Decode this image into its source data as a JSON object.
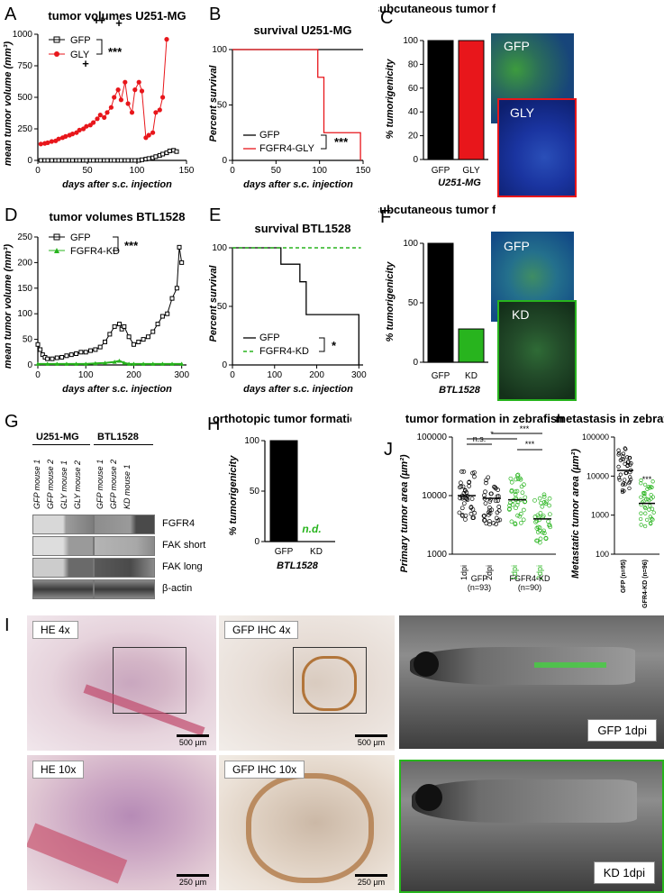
{
  "panel_labels": {
    "A": "A",
    "B": "B",
    "C": "C",
    "D": "D",
    "E": "E",
    "F": "F",
    "G": "G",
    "H": "H",
    "I": "I",
    "J": "J"
  },
  "colors": {
    "gfp": "#000000",
    "gly": "#e8161b",
    "kd": "#28b41e",
    "dapi": "#1a35b8",
    "gfp_fluor": "#3fa83c"
  },
  "chart_data": [
    {
      "id": "A",
      "type": "line",
      "title": "tumor volumes U251-MG",
      "xlabel": "days after s.c. injection",
      "ylabel": "mean tumor volume (mm³)",
      "xlim": [
        0,
        150
      ],
      "ylim": [
        0,
        1000
      ],
      "xticks": [
        "0",
        "50",
        "100",
        "150"
      ],
      "yticks": [
        "0",
        "250",
        "500",
        "750",
        "1000"
      ],
      "legend": [
        "GFP",
        "GLY"
      ],
      "significance": "***",
      "markers": [
        "+",
        "+",
        "+",
        "+"
      ],
      "series": [
        {
          "name": "GFP",
          "x": [
            3,
            7,
            10,
            14,
            18,
            21,
            25,
            28,
            32,
            35,
            39,
            42,
            46,
            49,
            53,
            56,
            60,
            63,
            67,
            70,
            74,
            77,
            81,
            84,
            88,
            91,
            95,
            98,
            102,
            105,
            109,
            112,
            116,
            119,
            123,
            126,
            130,
            133,
            137,
            140
          ],
          "y": [
            0,
            0,
            0,
            0,
            0,
            0,
            0,
            0,
            0,
            0,
            0,
            0,
            0,
            0,
            0,
            0,
            0,
            0,
            0,
            0,
            0,
            0,
            0,
            0,
            0,
            0,
            0,
            0,
            0,
            5,
            10,
            15,
            20,
            30,
            40,
            50,
            60,
            75,
            80,
            70
          ]
        },
        {
          "name": "GLY",
          "x": [
            3,
            7,
            10,
            14,
            18,
            21,
            25,
            28,
            32,
            35,
            39,
            42,
            46,
            49,
            53,
            56,
            60,
            63,
            67,
            70,
            74,
            77,
            81,
            84,
            88,
            91,
            95,
            98,
            102,
            105,
            109,
            112,
            116,
            119,
            123,
            126,
            130
          ],
          "y": [
            130,
            135,
            140,
            150,
            155,
            170,
            180,
            190,
            200,
            210,
            220,
            240,
            250,
            270,
            280,
            300,
            330,
            360,
            340,
            380,
            420,
            500,
            560,
            480,
            620,
            450,
            380,
            560,
            620,
            550,
            180,
            200,
            220,
            380,
            400,
            500,
            960
          ]
        }
      ]
    },
    {
      "id": "B",
      "type": "line",
      "title": "survival U251-MG",
      "xlabel": "days after s.c. injection",
      "ylabel": "Percent survival",
      "xlim": [
        0,
        150
      ],
      "ylim": [
        0,
        100
      ],
      "xticks": [
        "0",
        "50",
        "100",
        "150"
      ],
      "yticks": [
        "0",
        "50",
        "100"
      ],
      "legend": [
        "GFP",
        "FGFR4-GLY"
      ],
      "significance": "***",
      "series": [
        {
          "name": "GFP",
          "x": [
            0,
            150
          ],
          "y": [
            100,
            100
          ]
        },
        {
          "name": "FGFR4-GLY",
          "x": [
            0,
            98,
            98,
            105,
            105,
            112,
            112,
            147,
            147
          ],
          "y": [
            100,
            100,
            75,
            75,
            25,
            25,
            25,
            25,
            0
          ]
        }
      ]
    },
    {
      "id": "C",
      "type": "bar",
      "title": "subcutaneous tumor formation",
      "ylabel": "% tumorigenicity",
      "categories": [
        "GFP",
        "GLY"
      ],
      "values": [
        100,
        100
      ],
      "ylim": [
        0,
        100
      ],
      "yticks": [
        "0",
        "20",
        "40",
        "60",
        "80",
        "100"
      ],
      "xcaption": "U251-MG"
    },
    {
      "id": "D",
      "type": "line",
      "title": "tumor volumes BTL1528",
      "xlabel": "days after s.c. injection",
      "ylabel": "mean tumor volume (mm³)",
      "xlim": [
        0,
        310
      ],
      "ylim": [
        0,
        250
      ],
      "xticks": [
        "0",
        "100",
        "200",
        "300"
      ],
      "yticks": [
        "0",
        "50",
        "100",
        "150",
        "200",
        "250"
      ],
      "legend": [
        "GFP",
        "FGFR4-KD"
      ],
      "significance": "***",
      "series": [
        {
          "name": "GFP",
          "x": [
            0,
            5,
            10,
            15,
            20,
            30,
            40,
            50,
            60,
            70,
            80,
            90,
            100,
            110,
            120,
            130,
            140,
            150,
            160,
            170,
            175,
            180,
            190,
            200,
            210,
            220,
            230,
            240,
            250,
            260,
            270,
            280,
            290,
            295,
            300
          ],
          "y": [
            40,
            30,
            20,
            15,
            12,
            12,
            14,
            15,
            18,
            20,
            22,
            25,
            25,
            28,
            30,
            35,
            45,
            60,
            75,
            80,
            70,
            75,
            55,
            40,
            45,
            50,
            55,
            65,
            80,
            95,
            100,
            130,
            150,
            230,
            200
          ]
        },
        {
          "name": "FGFR4-KD",
          "x": [
            0,
            20,
            40,
            60,
            80,
            100,
            120,
            140,
            160,
            170,
            180,
            190,
            200,
            220,
            240,
            260,
            280,
            300
          ],
          "y": [
            2,
            2,
            2,
            2,
            2,
            2,
            3,
            4,
            6,
            8,
            4,
            2,
            2,
            2,
            2,
            2,
            2,
            2
          ]
        }
      ]
    },
    {
      "id": "E",
      "type": "line",
      "title": "survival BTL1528",
      "xlabel": "days after s.c. injection",
      "ylabel": "Percent survival",
      "xlim": [
        0,
        310
      ],
      "ylim": [
        0,
        100
      ],
      "xticks": [
        "0",
        "100",
        "200",
        "300"
      ],
      "yticks": [
        "0",
        "50",
        "100"
      ],
      "legend": [
        "GFP",
        "FGFR4-KD"
      ],
      "significance": "*",
      "series": [
        {
          "name": "GFP",
          "x": [
            0,
            115,
            115,
            160,
            160,
            175,
            175,
            300,
            300
          ],
          "y": [
            100,
            100,
            86,
            86,
            71,
            71,
            43,
            43,
            0
          ]
        },
        {
          "name": "FGFR4-KD",
          "x": [
            0,
            305
          ],
          "y": [
            100,
            100
          ]
        }
      ]
    },
    {
      "id": "F",
      "type": "bar",
      "title": "subcutaneous tumor formation",
      "ylabel": "% tumorigenicity",
      "categories": [
        "GFP",
        "KD"
      ],
      "values": [
        100,
        28
      ],
      "ylim": [
        0,
        100
      ],
      "yticks": [
        "0",
        "50",
        "100"
      ],
      "xcaption": "BTL1528"
    },
    {
      "id": "H",
      "type": "bar",
      "title": "orthotopic tumor formation",
      "ylabel": "% tumorigenicity",
      "categories": [
        "GFP",
        "KD"
      ],
      "values": [
        100,
        0
      ],
      "ylim": [
        0,
        100
      ],
      "yticks": [
        "0",
        "50",
        "100"
      ],
      "annotation": "n.d.",
      "xcaption": "BTL1528"
    },
    {
      "id": "J1",
      "type": "scatter",
      "title": "tumor formation in zebrafish",
      "ylabel": "Primary tumor area (µm²)",
      "yscale": "log",
      "ylim": [
        1000,
        100000
      ],
      "yticks": [
        "1000",
        "10000",
        "100000"
      ],
      "categories": [
        "1dpi",
        "2dpi",
        "1dpi",
        "2dpi"
      ],
      "group_labels": [
        "GFP",
        "(n=93)",
        "FGFR4-KD",
        "(n=90)"
      ],
      "medians": [
        10000,
        9000,
        8500,
        4000
      ],
      "comparisons": [
        "n.s.",
        "*",
        "***",
        "***"
      ]
    },
    {
      "id": "J2",
      "type": "scatter",
      "title": "metastasis in zebrafish",
      "ylabel": "Metastatic tumor area (µm²)",
      "yscale": "log",
      "ylim": [
        100,
        100000
      ],
      "yticks": [
        "100",
        "1000",
        "10000",
        "100000"
      ],
      "categories": [
        "GFP (n=95)",
        "FGFR4-KD (n=96)"
      ],
      "medians": [
        14000,
        2000
      ],
      "significance": "***"
    }
  ],
  "micrographs": {
    "C_top": "GFP",
    "C_bottom": "GLY",
    "F_top": "GFP",
    "F_bottom": "KD"
  },
  "western": {
    "groups": [
      "U251-MG",
      "BTL1528"
    ],
    "lanes_left": [
      "GFP mouse 1",
      "GFP mouse 2",
      "GLY mouse 1",
      "GLY mouse 2"
    ],
    "lanes_right": [
      "GFP mouse 1",
      "GFP mouse 2",
      "KD mouse 1"
    ],
    "rows": [
      "FGFR4",
      "FAK short",
      "FAK long",
      "β-actin"
    ]
  },
  "histology": {
    "tl": "HE 4x",
    "tr": "GFP IHC 4x",
    "bl": "HE 10x",
    "br": "GFP IHC 10x",
    "scale_top": "500 µm",
    "scale_bottom": "250 µm"
  },
  "zebrafish": {
    "top": "GFP 1dpi",
    "bottom": "KD 1dpi"
  }
}
